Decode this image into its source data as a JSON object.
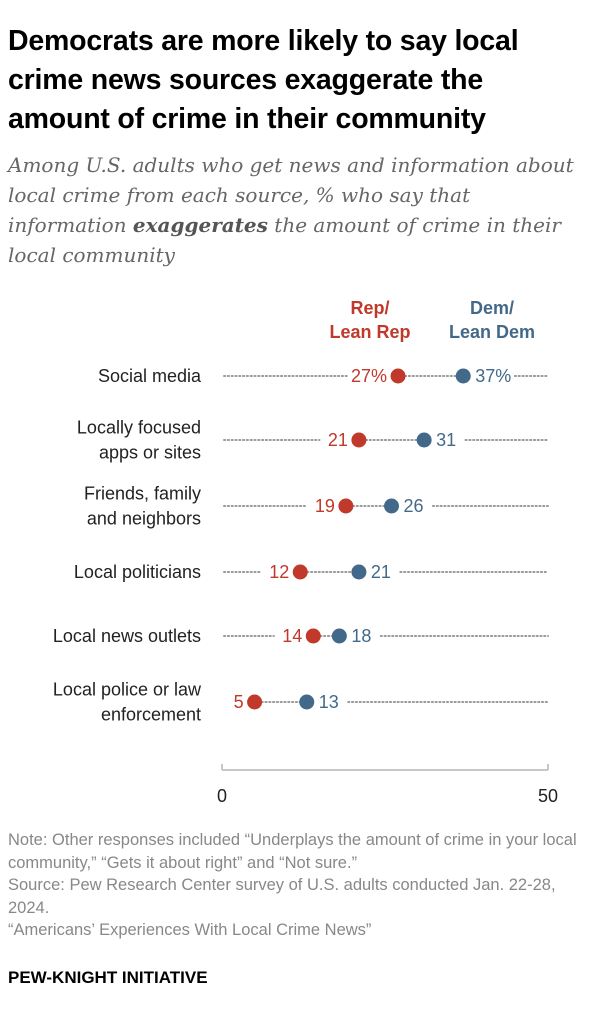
{
  "header": {
    "title": "Democrats are more likely to say local crime news sources exaggerate the amount of crime in their community",
    "subtitle_before": "Among U.S. adults who get news and information about local crime from each source, % who say that information ",
    "subtitle_emphasis": "exaggerates",
    "subtitle_after": " the amount of crime in their local community"
  },
  "colors": {
    "rep": "#c0392b",
    "dem": "#43698a",
    "dots": "#9a9a9a",
    "axis": "#b5b5b5",
    "label": "#222222"
  },
  "chart_data": {
    "type": "dot",
    "categories": [
      [
        "Social media"
      ],
      [
        "Locally focused",
        "apps or sites"
      ],
      [
        "Friends, family",
        "and neighbors"
      ],
      [
        "Local politicians"
      ],
      [
        "Local news outlets"
      ],
      [
        "Local police or law",
        "enforcement"
      ]
    ],
    "series": [
      {
        "name": [
          "Rep/",
          "Lean Rep"
        ],
        "values": [
          27,
          21,
          19,
          12,
          14,
          5
        ],
        "labels": [
          "27%",
          "21",
          "19",
          "12",
          "14",
          "5"
        ]
      },
      {
        "name": [
          "Dem/",
          "Lean Dem"
        ],
        "values": [
          37,
          31,
          26,
          21,
          18,
          13
        ],
        "labels": [
          "37%",
          "31",
          "26",
          "21",
          "18",
          "13"
        ]
      }
    ],
    "xlim": [
      0,
      50
    ],
    "xticks": [
      "0",
      "50"
    ]
  },
  "footer": {
    "note": "Note: Other responses included “Underplays the amount of crime in your local community,” “Gets it about right” and “Not sure.”",
    "source": "Source: Pew Research Center survey of U.S. adults conducted Jan. 22-28, 2024.",
    "report": "“Americans’ Experiences With Local Crime News”",
    "brand": "PEW-KNIGHT INITIATIVE"
  }
}
